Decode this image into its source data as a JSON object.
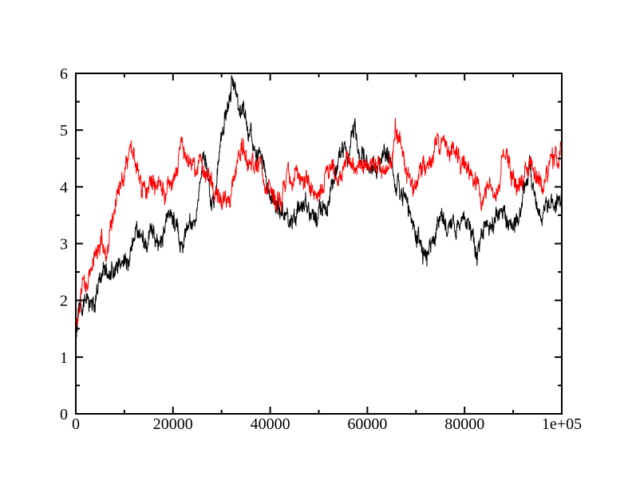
{
  "page": {
    "background": "#ffffff"
  },
  "chart_data": {
    "type": "line",
    "title": "",
    "xlabel": "",
    "ylabel": "",
    "xlim": [
      0,
      100000
    ],
    "ylim": [
      0,
      6
    ],
    "grid": false,
    "legend": null,
    "frame_color": "#000000",
    "tick_style": "inward-all-four-sides",
    "x_major_ticks": [
      0,
      20000,
      40000,
      60000,
      80000,
      100000
    ],
    "x_tick_labels": [
      "0",
      "20000",
      "40000",
      "60000",
      "80000",
      "1e+05"
    ],
    "x_minor_ticks": [
      10000,
      30000,
      50000,
      70000,
      90000
    ],
    "y_major_ticks": [
      0,
      1,
      2,
      3,
      4,
      5,
      6
    ],
    "y_tick_labels": [
      "0",
      "1",
      "2",
      "3",
      "4",
      "5",
      "6"
    ],
    "y_minor_ticks": [
      0.5,
      1.5,
      2.5,
      3.5,
      4.5,
      5.5
    ],
    "series": [
      {
        "name": "series-1-black",
        "color": "#000000",
        "line_width": 1,
        "noise_amplitude": 0.11,
        "anchors": [
          [
            0,
            1.4
          ],
          [
            800,
            1.75
          ],
          [
            1600,
            1.95
          ],
          [
            2400,
            2.05
          ],
          [
            3200,
            2.2
          ],
          [
            4000,
            2.28
          ],
          [
            5000,
            2.35
          ],
          [
            6000,
            2.45
          ],
          [
            7000,
            2.52
          ],
          [
            8000,
            2.55
          ],
          [
            9000,
            2.62
          ],
          [
            10000,
            2.7
          ],
          [
            11000,
            2.72
          ],
          [
            12000,
            2.85
          ],
          [
            13000,
            3.05
          ],
          [
            14000,
            3.12
          ],
          [
            15000,
            3.3
          ],
          [
            15600,
            3.45
          ],
          [
            16200,
            3.18
          ],
          [
            17000,
            3.05
          ],
          [
            18000,
            3.18
          ],
          [
            19000,
            3.32
          ],
          [
            20000,
            3.48
          ],
          [
            20800,
            3.35
          ],
          [
            21600,
            3.3
          ],
          [
            22500,
            3.22
          ],
          [
            23200,
            3.18
          ],
          [
            24000,
            3.35
          ],
          [
            25000,
            3.65
          ],
          [
            26000,
            4.1
          ],
          [
            26600,
            4.32
          ],
          [
            27200,
            4.05
          ],
          [
            28000,
            3.7
          ],
          [
            28600,
            3.9
          ],
          [
            29200,
            4.35
          ],
          [
            30000,
            4.85
          ],
          [
            30600,
            5.3
          ],
          [
            31200,
            5.45
          ],
          [
            31700,
            5.6
          ],
          [
            32100,
            5.88
          ],
          [
            32500,
            5.65
          ],
          [
            32900,
            5.62
          ],
          [
            33400,
            5.25
          ],
          [
            34000,
            5.05
          ],
          [
            34600,
            5.12
          ],
          [
            35200,
            4.85
          ],
          [
            36000,
            4.85
          ],
          [
            36600,
            4.62
          ],
          [
            37200,
            4.45
          ],
          [
            38000,
            4.25
          ],
          [
            39000,
            4.05
          ],
          [
            40000,
            3.88
          ],
          [
            41000,
            3.72
          ],
          [
            42000,
            3.62
          ],
          [
            43000,
            3.55
          ],
          [
            44000,
            3.4
          ],
          [
            45000,
            3.55
          ],
          [
            46000,
            3.62
          ],
          [
            47000,
            3.7
          ],
          [
            48000,
            3.52
          ],
          [
            49000,
            3.4
          ],
          [
            50000,
            3.3
          ],
          [
            51000,
            3.55
          ],
          [
            52000,
            3.82
          ],
          [
            53000,
            4.12
          ],
          [
            54000,
            4.32
          ],
          [
            55000,
            4.52
          ],
          [
            55600,
            4.75
          ],
          [
            56200,
            4.58
          ],
          [
            57000,
            4.92
          ],
          [
            57400,
            5.05
          ],
          [
            58000,
            4.78
          ],
          [
            58600,
            4.55
          ],
          [
            59400,
            4.42
          ],
          [
            60200,
            4.32
          ],
          [
            61000,
            4.42
          ],
          [
            62000,
            4.35
          ],
          [
            63000,
            4.45
          ],
          [
            64000,
            4.5
          ],
          [
            65000,
            4.4
          ],
          [
            65600,
            4.22
          ],
          [
            66200,
            4.32
          ],
          [
            66800,
            4.1
          ],
          [
            67500,
            3.95
          ],
          [
            68200,
            3.72
          ],
          [
            69000,
            3.45
          ],
          [
            70000,
            3.15
          ],
          [
            71000,
            2.92
          ],
          [
            72000,
            2.78
          ],
          [
            72800,
            2.72
          ],
          [
            73600,
            3.05
          ],
          [
            74500,
            3.42
          ],
          [
            75200,
            3.5
          ],
          [
            76000,
            3.42
          ],
          [
            77000,
            3.35
          ],
          [
            78000,
            3.42
          ],
          [
            79000,
            3.32
          ],
          [
            80000,
            3.25
          ],
          [
            81000,
            3.2
          ],
          [
            82000,
            3.1
          ],
          [
            82700,
            3.04
          ],
          [
            83500,
            3.2
          ],
          [
            84500,
            3.3
          ],
          [
            85500,
            3.32
          ],
          [
            86500,
            3.42
          ],
          [
            87500,
            3.55
          ],
          [
            88200,
            3.6
          ],
          [
            89000,
            3.46
          ],
          [
            90000,
            3.46
          ],
          [
            91000,
            3.6
          ],
          [
            92000,
            3.8
          ],
          [
            93000,
            4.15
          ],
          [
            93400,
            4.4
          ],
          [
            94000,
            4.02
          ],
          [
            95000,
            3.82
          ],
          [
            96000,
            3.7
          ],
          [
            97000,
            3.8
          ],
          [
            98000,
            3.86
          ],
          [
            99000,
            3.78
          ],
          [
            100000,
            3.8
          ]
        ]
      },
      {
        "name": "series-2-red",
        "color": "#ff0000",
        "line_width": 1,
        "noise_amplitude": 0.11,
        "anchors": [
          [
            0,
            1.45
          ],
          [
            800,
            2.0
          ],
          [
            1600,
            2.3
          ],
          [
            2400,
            2.32
          ],
          [
            3200,
            2.55
          ],
          [
            4000,
            2.8
          ],
          [
            5000,
            3.0
          ],
          [
            5600,
            2.92
          ],
          [
            6400,
            3.12
          ],
          [
            7200,
            3.3
          ],
          [
            8000,
            3.55
          ],
          [
            9000,
            3.9
          ],
          [
            10000,
            4.2
          ],
          [
            10600,
            4.45
          ],
          [
            11200,
            4.85
          ],
          [
            11800,
            4.55
          ],
          [
            12400,
            4.3
          ],
          [
            13000,
            4.05
          ],
          [
            13600,
            3.92
          ],
          [
            14400,
            3.96
          ],
          [
            15200,
            3.9
          ],
          [
            16000,
            4.0
          ],
          [
            17000,
            4.06
          ],
          [
            18000,
            4.0
          ],
          [
            19000,
            4.1
          ],
          [
            20000,
            4.16
          ],
          [
            21000,
            4.3
          ],
          [
            21900,
            4.52
          ],
          [
            22600,
            4.3
          ],
          [
            23400,
            4.2
          ],
          [
            24200,
            4.26
          ],
          [
            25000,
            4.32
          ],
          [
            25600,
            4.46
          ],
          [
            26200,
            4.3
          ],
          [
            27000,
            4.0
          ],
          [
            27600,
            3.9
          ],
          [
            28400,
            4.0
          ],
          [
            29200,
            4.06
          ],
          [
            30000,
            4.0
          ],
          [
            31000,
            4.1
          ],
          [
            32000,
            4.05
          ],
          [
            33000,
            4.35
          ],
          [
            33600,
            4.6
          ],
          [
            34200,
            4.72
          ],
          [
            34900,
            4.5
          ],
          [
            35600,
            4.4
          ],
          [
            36400,
            4.46
          ],
          [
            37200,
            4.35
          ],
          [
            38000,
            4.22
          ],
          [
            39000,
            4.05
          ],
          [
            40000,
            3.95
          ],
          [
            41000,
            3.9
          ],
          [
            42000,
            3.96
          ],
          [
            43000,
            4.0
          ],
          [
            44000,
            4.1
          ],
          [
            45000,
            4.2
          ],
          [
            46000,
            4.1
          ],
          [
            47000,
            4.0
          ],
          [
            48000,
            3.95
          ],
          [
            49000,
            3.9
          ],
          [
            50000,
            3.85
          ],
          [
            51000,
            3.95
          ],
          [
            52000,
            4.06
          ],
          [
            53000,
            4.2
          ],
          [
            54000,
            4.35
          ],
          [
            55000,
            4.3
          ],
          [
            56000,
            4.4
          ],
          [
            57000,
            4.35
          ],
          [
            58000,
            4.42
          ],
          [
            59000,
            4.3
          ],
          [
            60000,
            4.36
          ],
          [
            61000,
            4.42
          ],
          [
            62000,
            4.3
          ],
          [
            63000,
            4.36
          ],
          [
            64000,
            4.26
          ],
          [
            65000,
            4.42
          ],
          [
            65800,
            5.1
          ],
          [
            66300,
            4.88
          ],
          [
            66900,
            4.6
          ],
          [
            67600,
            4.3
          ],
          [
            68300,
            4.1
          ],
          [
            69000,
            3.96
          ],
          [
            69600,
            3.9
          ],
          [
            70400,
            4.02
          ],
          [
            71200,
            4.16
          ],
          [
            72200,
            4.32
          ],
          [
            73200,
            4.48
          ],
          [
            74000,
            4.66
          ],
          [
            74800,
            4.55
          ],
          [
            75600,
            4.62
          ],
          [
            76600,
            4.46
          ],
          [
            77600,
            4.52
          ],
          [
            78600,
            4.4
          ],
          [
            79600,
            4.36
          ],
          [
            80600,
            4.26
          ],
          [
            81600,
            4.16
          ],
          [
            82600,
            4.1
          ],
          [
            83600,
            4.0
          ],
          [
            84600,
            3.9
          ],
          [
            85300,
            3.76
          ],
          [
            86100,
            3.92
          ],
          [
            87000,
            4.2
          ],
          [
            88000,
            4.5
          ],
          [
            88800,
            4.56
          ],
          [
            89600,
            4.3
          ],
          [
            90600,
            4.0
          ],
          [
            91600,
            4.16
          ],
          [
            92600,
            4.3
          ],
          [
            93600,
            4.4
          ],
          [
            94600,
            4.26
          ],
          [
            95600,
            4.2
          ],
          [
            96600,
            4.0
          ],
          [
            97600,
            4.2
          ],
          [
            98600,
            4.3
          ],
          [
            99400,
            4.36
          ],
          [
            100000,
            4.58
          ]
        ]
      }
    ]
  }
}
